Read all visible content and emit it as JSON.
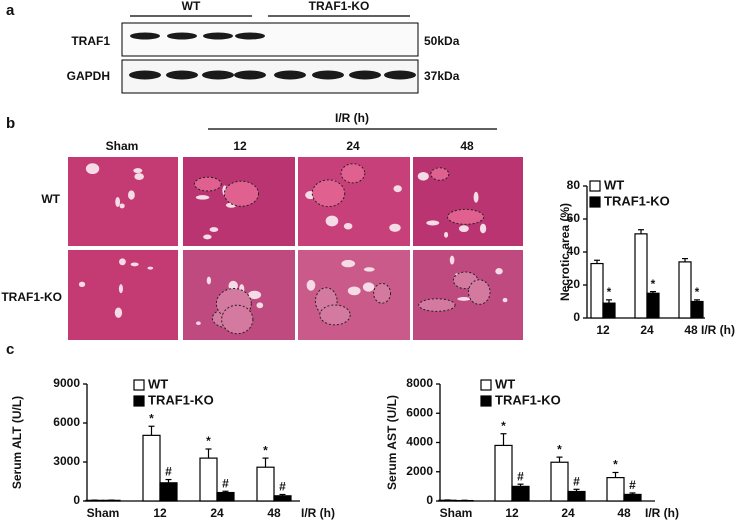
{
  "figure": {
    "panel_labels": [
      "a",
      "b",
      "c"
    ],
    "blot": {
      "groups": [
        "WT",
        "TRAF1-KO"
      ],
      "rows": [
        {
          "label": "TRAF1",
          "size": "50kDa"
        },
        {
          "label": "GAPDH",
          "size": "37kDa"
        }
      ]
    },
    "histology": {
      "group_label": "I/R (h)",
      "columns": [
        "Sham",
        "12",
        "24",
        "48"
      ],
      "rows": [
        "WT",
        "TRAF1-KO"
      ]
    }
  },
  "chart_data": [
    {
      "type": "bar",
      "y_label": "Necrotic area (%)",
      "x_label": "I/R (h)",
      "categories": [
        "12",
        "24",
        "48"
      ],
      "series": [
        {
          "name": "WT",
          "color": "#ffffff",
          "values": [
            33,
            51,
            34
          ],
          "errors": [
            2,
            2.5,
            2
          ]
        },
        {
          "name": "TRAF1-KO",
          "color": "#000000",
          "values": [
            9,
            15,
            10
          ],
          "errors": [
            2,
            1,
            1
          ],
          "annotations": [
            "*",
            "*",
            "*"
          ]
        }
      ],
      "ylim": [
        0,
        80
      ],
      "yticks": [
        0,
        20,
        40,
        60,
        80
      ],
      "legend": "top-left"
    },
    {
      "type": "bar",
      "y_label": "Serum ALT (U/L)",
      "x_label": "I/R (h)",
      "categories": [
        "Sham",
        "12",
        "24",
        "48"
      ],
      "series": [
        {
          "name": "WT",
          "color": "#ffffff",
          "values": [
            50,
            5050,
            3300,
            2600
          ],
          "errors": [
            20,
            700,
            700,
            700
          ],
          "annotations": [
            null,
            "*",
            "*",
            "*"
          ]
        },
        {
          "name": "TRAF1-KO",
          "color": "#000000",
          "values": [
            50,
            1400,
            650,
            400
          ],
          "errors": [
            20,
            250,
            100,
            100
          ],
          "annotations": [
            null,
            "#",
            "#",
            "#"
          ]
        }
      ],
      "ylim": [
        0,
        9000
      ],
      "yticks": [
        0,
        3000,
        6000,
        9000
      ],
      "legend": "top-left"
    },
    {
      "type": "bar",
      "y_label": "Serum AST (U/L)",
      "x_label": "I/R (h)",
      "categories": [
        "Sham",
        "12",
        "24",
        "48"
      ],
      "series": [
        {
          "name": "WT",
          "color": "#ffffff",
          "values": [
            50,
            3800,
            2650,
            1600
          ],
          "errors": [
            20,
            800,
            350,
            350
          ],
          "annotations": [
            null,
            "*",
            "*",
            "*"
          ]
        },
        {
          "name": "TRAF1-KO",
          "color": "#000000",
          "values": [
            30,
            1000,
            650,
            450
          ],
          "errors": [
            20,
            150,
            150,
            100
          ],
          "annotations": [
            null,
            "#",
            "#",
            "#"
          ]
        }
      ],
      "ylim": [
        0,
        8000
      ],
      "yticks": [
        0,
        2000,
        4000,
        6000,
        8000
      ],
      "legend": "top-left"
    }
  ]
}
